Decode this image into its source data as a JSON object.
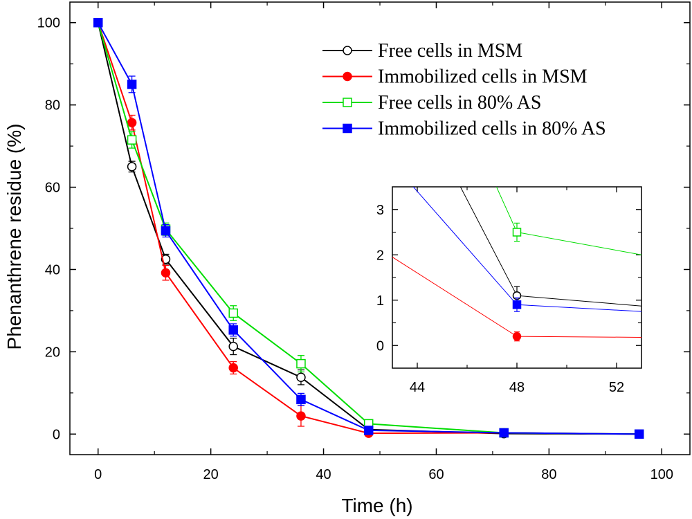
{
  "chart_data": {
    "type": "line",
    "xlabel": "Time  (h)",
    "ylabel": "Phenanthrene residue  (%)",
    "xlim": [
      -5,
      105
    ],
    "ylim": [
      -5,
      105
    ],
    "xticks": [
      0,
      20,
      40,
      60,
      80,
      100
    ],
    "yticks": [
      0,
      20,
      40,
      60,
      80,
      100
    ],
    "legend_position": "top-right",
    "series": [
      {
        "name": "Free cells in MSM",
        "color": "#000000",
        "marker": "circle-open",
        "x": [
          0,
          6,
          12,
          24,
          36,
          48,
          72,
          96
        ],
        "y": [
          100,
          65,
          42.5,
          21.3,
          13.8,
          1.1,
          0.1,
          0
        ],
        "err": [
          0.5,
          1.3,
          1.2,
          2.0,
          1.8,
          0.2,
          0.3,
          0.3
        ]
      },
      {
        "name": "Immobilized cells in MSM",
        "color": "#ff0000",
        "marker": "circle-filled",
        "x": [
          0,
          6,
          12,
          24,
          36,
          48,
          72,
          96
        ],
        "y": [
          100,
          75.7,
          39.2,
          16.1,
          4.4,
          0.2,
          0.3,
          0
        ],
        "err": [
          0.5,
          1.8,
          1.8,
          1.5,
          2.5,
          0.1,
          0.3,
          0.3
        ]
      },
      {
        "name": "Free cells in 80% AS",
        "color": "#00dd00",
        "marker": "square-open",
        "x": [
          0,
          6,
          12,
          24,
          36,
          48,
          72,
          96
        ],
        "y": [
          100,
          71.5,
          49.8,
          29.4,
          17.1,
          2.5,
          0.3,
          0
        ],
        "err": [
          0.5,
          2.0,
          1.5,
          1.8,
          2.0,
          0.2,
          0.3,
          0.3
        ]
      },
      {
        "name": "Immobilized cells in 80% AS",
        "color": "#0000ff",
        "marker": "square-filled",
        "x": [
          0,
          6,
          12,
          24,
          36,
          48,
          72,
          96
        ],
        "y": [
          100,
          85,
          49.4,
          25.3,
          8.4,
          0.9,
          0.3,
          0
        ],
        "err": [
          0.5,
          2.0,
          1.5,
          1.5,
          1.5,
          0.15,
          0.3,
          0.3
        ]
      }
    ],
    "inset": {
      "xlim": [
        43,
        53
      ],
      "ylim": [
        -0.5,
        3.5
      ],
      "xticks": [
        44,
        48,
        52
      ],
      "yticks": [
        0,
        1,
        2,
        3
      ],
      "line_end": {
        "x": 53,
        "y": {
          "Free cells in MSM": 0.87,
          "Immobilized cells in MSM": 0.18,
          "Free cells in 80% AS": 2.0,
          "Immobilized cells in 80% AS": 0.75
        }
      }
    }
  }
}
